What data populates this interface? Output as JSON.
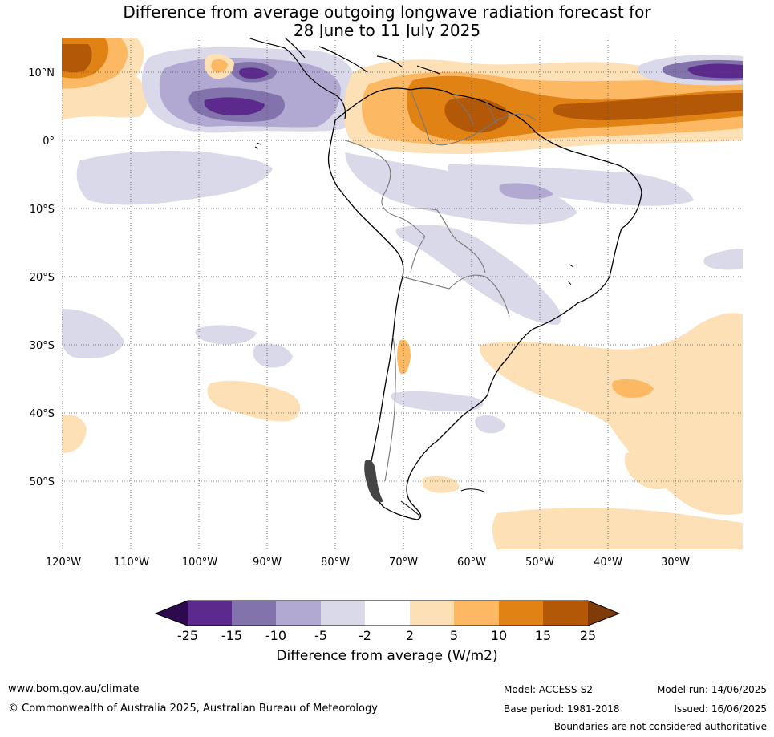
{
  "title": {
    "line1": "Difference from average outgoing longwave radiation forecast for",
    "line2": "28 June to 11 July 2025"
  },
  "map": {
    "lat_labels": [
      "10°N",
      "0°",
      "10°S",
      "20°S",
      "30°S",
      "40°S",
      "50°S"
    ],
    "lon_labels": [
      "120°W",
      "110°W",
      "100°W",
      "90°W",
      "80°W",
      "70°W",
      "60°W",
      "50°W",
      "40°W",
      "30°W"
    ]
  },
  "colorbar": {
    "ticks": [
      "-25",
      "-15",
      "-10",
      "-5",
      "-2",
      "2",
      "5",
      "10",
      "15",
      "25"
    ],
    "colors": [
      "#2d0a4e",
      "#5b2a8c",
      "#8273ad",
      "#b1a9d1",
      "#d9d9ea",
      "#ffffff",
      "#fee0b6",
      "#fdb863",
      "#e08214",
      "#b35806",
      "#7f3b08"
    ],
    "title": "Difference from average (W/m2)"
  },
  "footer": {
    "website": "www.bom.gov.au/climate",
    "copyright": "© Commonwealth of Australia 2025, Australian Bureau of Meteorology",
    "model": "Model: ACCESS-S2",
    "base_period": "Base period: 1981-2018",
    "model_run": "Model run: 14/06/2025",
    "issued": "Issued: 16/06/2025",
    "disclaimer": "Boundaries are not considered authoritative"
  }
}
